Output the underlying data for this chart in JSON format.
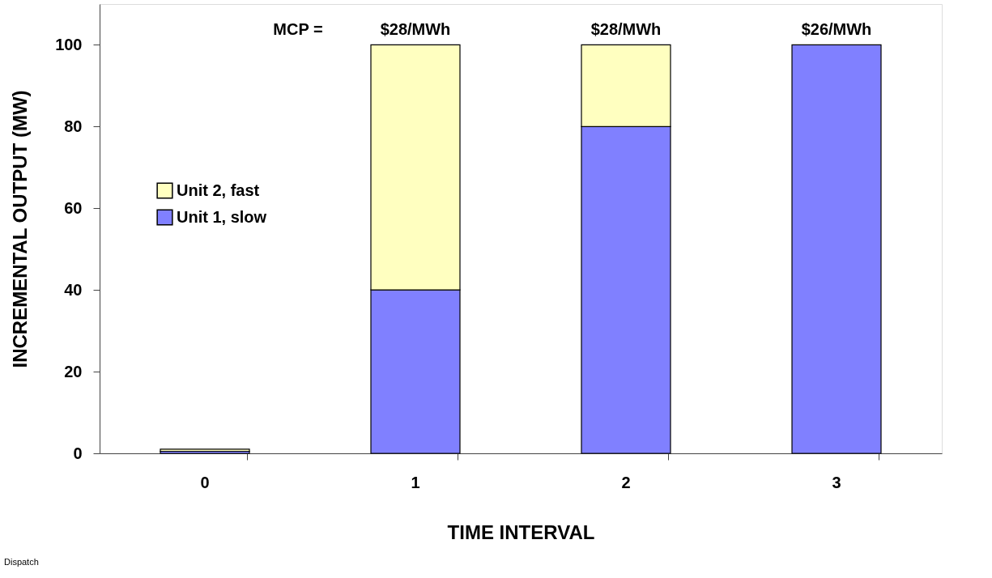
{
  "chart_data": {
    "type": "bar",
    "stacked": true,
    "xlabel": "TIME INTERVAL",
    "ylabel": "INCREMENTAL OUTPUT (MW)",
    "categories": [
      "0",
      "1",
      "2",
      "3"
    ],
    "series": [
      {
        "name": "Unit 1, slow",
        "color": "#8080ff",
        "values": [
          0.5,
          40,
          80,
          100
        ]
      },
      {
        "name": "Unit 2, fast",
        "color": "#ffffc0",
        "values": [
          0.5,
          60,
          20,
          null
        ]
      }
    ],
    "ylim": [
      0,
      110
    ],
    "yticks": [
      0,
      20,
      40,
      60,
      80,
      100
    ],
    "grid": false,
    "legend": "left",
    "annotations": [
      "MCP =",
      {
        "text": "$28/MWh",
        "x": "1",
        "y": 100
      },
      {
        "text": "$28/MWh",
        "x": "2",
        "y": 100
      },
      {
        "text": "$26/MWh",
        "x": "3",
        "y": 100
      },
      "Dispatch"
    ]
  }
}
